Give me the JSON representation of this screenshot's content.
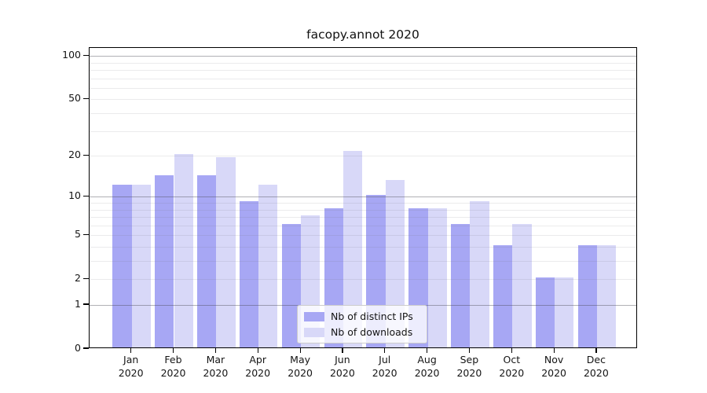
{
  "title": "facopy.annot 2020",
  "colors": {
    "ips_bar": "#a7a7f4",
    "downloads_bar": "#d8d8f8",
    "axis_spine": "#000000",
    "major_grid": "#b0b0b0",
    "minor_grid": "#e9e9e9",
    "legend_border": "#cccccc"
  },
  "chart_data": {
    "type": "bar",
    "title": "facopy.annot 2020",
    "categories": [
      "Jan",
      "Feb",
      "Mar",
      "Apr",
      "May",
      "Jun",
      "Jul",
      "Aug",
      "Sep",
      "Oct",
      "Nov",
      "Dec"
    ],
    "category_year": "2020",
    "series": [
      {
        "name": "Nb of distinct IPs",
        "color": "#a7a7f4",
        "values": [
          12,
          14,
          14,
          9,
          6,
          8,
          10,
          8,
          6,
          4,
          2,
          4
        ]
      },
      {
        "name": "Nb of downloads",
        "color": "#d8d8f8",
        "values": [
          12,
          20,
          19,
          12,
          7,
          21,
          13,
          8,
          9,
          6,
          2,
          4
        ]
      }
    ],
    "xlabel": "",
    "ylabel": "",
    "y_axis": {
      "scale": "log1p",
      "tick_values": [
        0,
        1,
        2,
        5,
        10,
        20,
        50,
        100
      ],
      "tick_labels": [
        "0",
        "1",
        "2",
        "5",
        "10",
        "20",
        "50",
        "100"
      ],
      "major_gridlines": [
        1,
        10,
        100
      ],
      "minor_gridlines": [
        2,
        3,
        4,
        5,
        6,
        7,
        8,
        9,
        20,
        30,
        40,
        50,
        60,
        70,
        80,
        90
      ],
      "range": [
        0,
        113
      ]
    },
    "grid": true,
    "legend_position": "lower center"
  }
}
